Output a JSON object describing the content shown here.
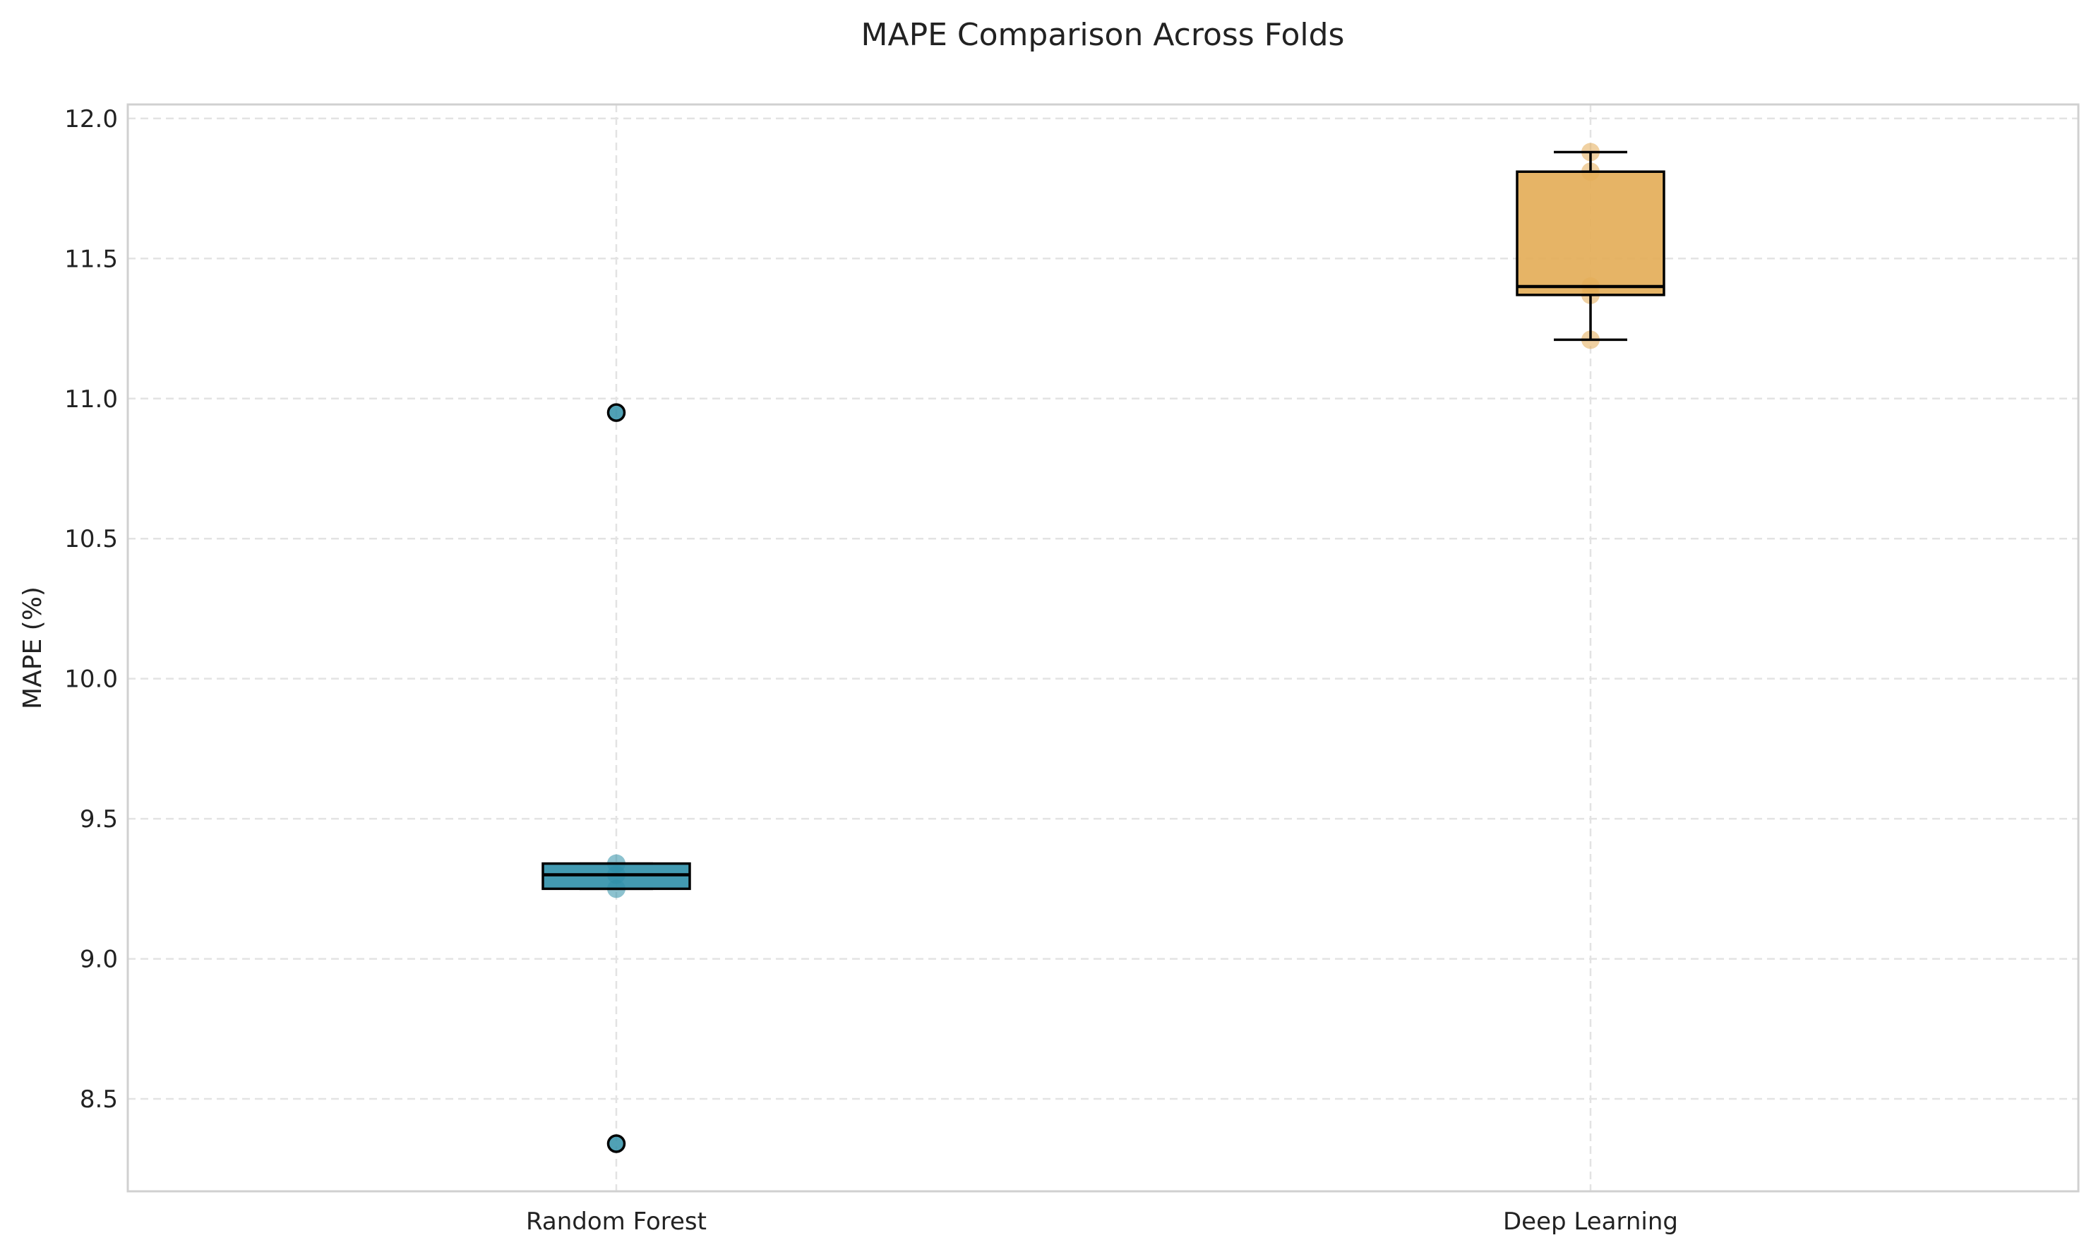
{
  "chart_data": {
    "type": "boxplot",
    "title": "MAPE Comparison Across Folds",
    "xlabel": "",
    "ylabel": "MAPE (%)",
    "ylim": [
      8.17,
      12.05
    ],
    "yticks": [
      8.5,
      9.0,
      9.5,
      10.0,
      10.5,
      11.0,
      11.5,
      12.0
    ],
    "ytick_labels": [
      "8.5",
      "9.0",
      "9.5",
      "10.0",
      "10.5",
      "11.0",
      "11.5",
      "12.0"
    ],
    "grid": true,
    "categories": [
      "Random Forest",
      "Deep Learning"
    ],
    "boxes": [
      {
        "category": "Random Forest",
        "color": "#2f8fa8",
        "whisker_low": 9.25,
        "q1": 9.25,
        "median": 9.3,
        "q3": 9.34,
        "whisker_high": 9.34,
        "outliers": [
          10.95,
          8.34
        ],
        "points": [
          8.34,
          9.25,
          9.3,
          9.34,
          10.95
        ]
      },
      {
        "category": "Deep Learning",
        "color": "#e3ac55",
        "whisker_low": 11.21,
        "q1": 11.37,
        "median": 11.4,
        "q3": 11.81,
        "whisker_high": 11.88,
        "outliers": [],
        "points": [
          11.21,
          11.37,
          11.4,
          11.81,
          11.88
        ]
      }
    ]
  }
}
